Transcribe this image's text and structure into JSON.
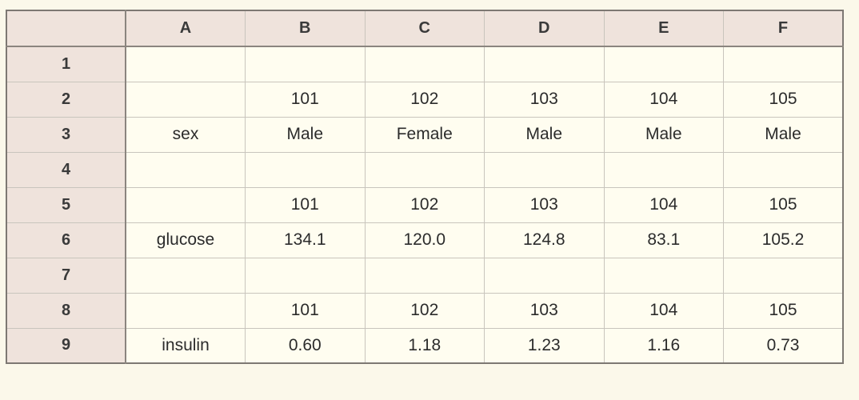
{
  "columns": [
    "A",
    "B",
    "C",
    "D",
    "E",
    "F"
  ],
  "rows": [
    {
      "label": "1",
      "cells": [
        "",
        "",
        "",
        "",
        "",
        ""
      ]
    },
    {
      "label": "2",
      "cells": [
        "",
        "101",
        "102",
        "103",
        "104",
        "105"
      ]
    },
    {
      "label": "3",
      "cells": [
        "sex",
        "Male",
        "Female",
        "Male",
        "Male",
        "Male"
      ]
    },
    {
      "label": "4",
      "cells": [
        "",
        "",
        "",
        "",
        "",
        ""
      ]
    },
    {
      "label": "5",
      "cells": [
        "",
        "101",
        "102",
        "103",
        "104",
        "105"
      ]
    },
    {
      "label": "6",
      "cells": [
        "glucose",
        "134.1",
        "120.0",
        "124.8",
        "83.1",
        "105.2"
      ]
    },
    {
      "label": "7",
      "cells": [
        "",
        "",
        "",
        "",
        "",
        ""
      ]
    },
    {
      "label": "8",
      "cells": [
        "",
        "101",
        "102",
        "103",
        "104",
        "105"
      ]
    },
    {
      "label": "9",
      "cells": [
        "insulin",
        "0.60",
        "1.18",
        "1.23",
        "1.16",
        "0.73"
      ]
    }
  ]
}
